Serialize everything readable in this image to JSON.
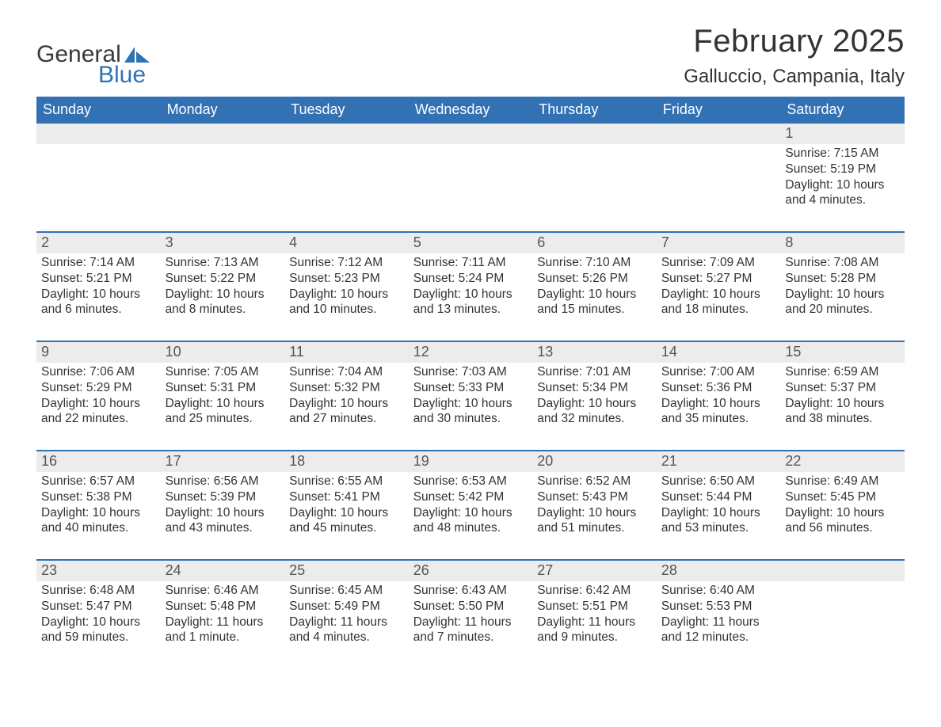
{
  "logo": {
    "general": "General",
    "blue": "Blue",
    "brand_color": "#2f73b6"
  },
  "header": {
    "month_title": "February 2025",
    "location": "Galluccio, Campania, Italy"
  },
  "colors": {
    "header_bar_bg": "#3171b4",
    "header_bar_text": "#ffffff",
    "week_border": "#3171b4",
    "daynum_bg": "#ececec",
    "text": "#333333",
    "page_bg": "#ffffff"
  },
  "typography": {
    "title_fontsize": 40,
    "location_fontsize": 24,
    "dow_fontsize": 18,
    "daynum_fontsize": 18,
    "body_fontsize": 15.5
  },
  "days_of_week": [
    "Sunday",
    "Monday",
    "Tuesday",
    "Wednesday",
    "Thursday",
    "Friday",
    "Saturday"
  ],
  "weeks": [
    [
      null,
      null,
      null,
      null,
      null,
      null,
      {
        "day": "1",
        "sunrise": "Sunrise: 7:15 AM",
        "sunset": "Sunset: 5:19 PM",
        "daylight": "Daylight: 10 hours and 4 minutes."
      }
    ],
    [
      {
        "day": "2",
        "sunrise": "Sunrise: 7:14 AM",
        "sunset": "Sunset: 5:21 PM",
        "daylight": "Daylight: 10 hours and 6 minutes."
      },
      {
        "day": "3",
        "sunrise": "Sunrise: 7:13 AM",
        "sunset": "Sunset: 5:22 PM",
        "daylight": "Daylight: 10 hours and 8 minutes."
      },
      {
        "day": "4",
        "sunrise": "Sunrise: 7:12 AM",
        "sunset": "Sunset: 5:23 PM",
        "daylight": "Daylight: 10 hours and 10 minutes."
      },
      {
        "day": "5",
        "sunrise": "Sunrise: 7:11 AM",
        "sunset": "Sunset: 5:24 PM",
        "daylight": "Daylight: 10 hours and 13 minutes."
      },
      {
        "day": "6",
        "sunrise": "Sunrise: 7:10 AM",
        "sunset": "Sunset: 5:26 PM",
        "daylight": "Daylight: 10 hours and 15 minutes."
      },
      {
        "day": "7",
        "sunrise": "Sunrise: 7:09 AM",
        "sunset": "Sunset: 5:27 PM",
        "daylight": "Daylight: 10 hours and 18 minutes."
      },
      {
        "day": "8",
        "sunrise": "Sunrise: 7:08 AM",
        "sunset": "Sunset: 5:28 PM",
        "daylight": "Daylight: 10 hours and 20 minutes."
      }
    ],
    [
      {
        "day": "9",
        "sunrise": "Sunrise: 7:06 AM",
        "sunset": "Sunset: 5:29 PM",
        "daylight": "Daylight: 10 hours and 22 minutes."
      },
      {
        "day": "10",
        "sunrise": "Sunrise: 7:05 AM",
        "sunset": "Sunset: 5:31 PM",
        "daylight": "Daylight: 10 hours and 25 minutes."
      },
      {
        "day": "11",
        "sunrise": "Sunrise: 7:04 AM",
        "sunset": "Sunset: 5:32 PM",
        "daylight": "Daylight: 10 hours and 27 minutes."
      },
      {
        "day": "12",
        "sunrise": "Sunrise: 7:03 AM",
        "sunset": "Sunset: 5:33 PM",
        "daylight": "Daylight: 10 hours and 30 minutes."
      },
      {
        "day": "13",
        "sunrise": "Sunrise: 7:01 AM",
        "sunset": "Sunset: 5:34 PM",
        "daylight": "Daylight: 10 hours and 32 minutes."
      },
      {
        "day": "14",
        "sunrise": "Sunrise: 7:00 AM",
        "sunset": "Sunset: 5:36 PM",
        "daylight": "Daylight: 10 hours and 35 minutes."
      },
      {
        "day": "15",
        "sunrise": "Sunrise: 6:59 AM",
        "sunset": "Sunset: 5:37 PM",
        "daylight": "Daylight: 10 hours and 38 minutes."
      }
    ],
    [
      {
        "day": "16",
        "sunrise": "Sunrise: 6:57 AM",
        "sunset": "Sunset: 5:38 PM",
        "daylight": "Daylight: 10 hours and 40 minutes."
      },
      {
        "day": "17",
        "sunrise": "Sunrise: 6:56 AM",
        "sunset": "Sunset: 5:39 PM",
        "daylight": "Daylight: 10 hours and 43 minutes."
      },
      {
        "day": "18",
        "sunrise": "Sunrise: 6:55 AM",
        "sunset": "Sunset: 5:41 PM",
        "daylight": "Daylight: 10 hours and 45 minutes."
      },
      {
        "day": "19",
        "sunrise": "Sunrise: 6:53 AM",
        "sunset": "Sunset: 5:42 PM",
        "daylight": "Daylight: 10 hours and 48 minutes."
      },
      {
        "day": "20",
        "sunrise": "Sunrise: 6:52 AM",
        "sunset": "Sunset: 5:43 PM",
        "daylight": "Daylight: 10 hours and 51 minutes."
      },
      {
        "day": "21",
        "sunrise": "Sunrise: 6:50 AM",
        "sunset": "Sunset: 5:44 PM",
        "daylight": "Daylight: 10 hours and 53 minutes."
      },
      {
        "day": "22",
        "sunrise": "Sunrise: 6:49 AM",
        "sunset": "Sunset: 5:45 PM",
        "daylight": "Daylight: 10 hours and 56 minutes."
      }
    ],
    [
      {
        "day": "23",
        "sunrise": "Sunrise: 6:48 AM",
        "sunset": "Sunset: 5:47 PM",
        "daylight": "Daylight: 10 hours and 59 minutes."
      },
      {
        "day": "24",
        "sunrise": "Sunrise: 6:46 AM",
        "sunset": "Sunset: 5:48 PM",
        "daylight": "Daylight: 11 hours and 1 minute."
      },
      {
        "day": "25",
        "sunrise": "Sunrise: 6:45 AM",
        "sunset": "Sunset: 5:49 PM",
        "daylight": "Daylight: 11 hours and 4 minutes."
      },
      {
        "day": "26",
        "sunrise": "Sunrise: 6:43 AM",
        "sunset": "Sunset: 5:50 PM",
        "daylight": "Daylight: 11 hours and 7 minutes."
      },
      {
        "day": "27",
        "sunrise": "Sunrise: 6:42 AM",
        "sunset": "Sunset: 5:51 PM",
        "daylight": "Daylight: 11 hours and 9 minutes."
      },
      {
        "day": "28",
        "sunrise": "Sunrise: 6:40 AM",
        "sunset": "Sunset: 5:53 PM",
        "daylight": "Daylight: 11 hours and 12 minutes."
      },
      null
    ]
  ]
}
